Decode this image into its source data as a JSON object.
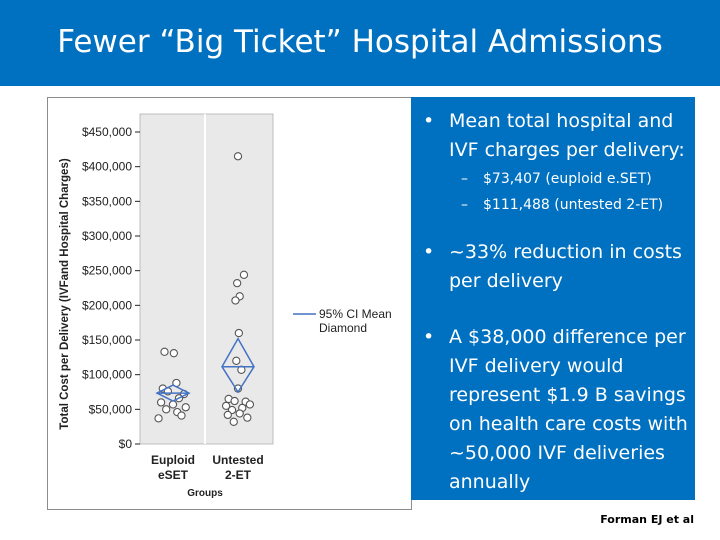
{
  "slide": {
    "title": "Fewer “Big Ticket” Hospital Admissions",
    "citation": "Forman EJ et al"
  },
  "bullets": [
    {
      "text": "Mean total hospital and IVF charges per delivery:"
    },
    {
      "text": "~33% reduction in costs per delivery"
    },
    {
      "text": "A $38,000 difference per IVF delivery would represent $1.9 B savings on health care costs with ~50,000 IVF deliveries annually"
    }
  ],
  "sub_bullets": [
    {
      "dash": "–",
      "text": "$73,407  (euploid e.SET)"
    },
    {
      "dash": "–",
      "text": "$111,488 (untested 2-ET)"
    }
  ],
  "colors": {
    "brand_blue": "#0070c0",
    "diamond": "#4472c4",
    "points": "#555555"
  },
  "chart_data": {
    "type": "scatter",
    "ylabel": "Total Cost per Delivery (IVFand Hospital Charges)",
    "xlabel": "Groups",
    "y_ticks": [
      {
        "value": 0,
        "label": "$0"
      },
      {
        "value": 50000,
        "label": "$50,000"
      },
      {
        "value": 100000,
        "label": "$100,000"
      },
      {
        "value": 150000,
        "label": "$150,000"
      },
      {
        "value": 200000,
        "label": "$200,000"
      },
      {
        "value": 250000,
        "label": "$250,000"
      },
      {
        "value": 300000,
        "label": "$300,000"
      },
      {
        "value": 350000,
        "label": "$350,000"
      },
      {
        "value": 400000,
        "label": "$400,000"
      },
      {
        "value": 450000,
        "label": "$450,000"
      }
    ],
    "ylim": [
      0,
      450000
    ],
    "categories": [
      {
        "line1": "Euploid",
        "line2": "eSET"
      },
      {
        "line1": "Untested",
        "line2": "2-ET"
      }
    ],
    "groups": [
      {
        "points": [
          {
            "jitter": -0.5,
            "y": 133000
          },
          {
            "jitter": 0.05,
            "y": 131000
          },
          {
            "jitter": 0.2,
            "y": 88000
          },
          {
            "jitter": -0.6,
            "y": 80000
          },
          {
            "jitter": -0.3,
            "y": 76000
          },
          {
            "jitter": 0.65,
            "y": 72000
          },
          {
            "jitter": 0.35,
            "y": 66000
          },
          {
            "jitter": -0.7,
            "y": 60000
          },
          {
            "jitter": 0.0,
            "y": 57000
          },
          {
            "jitter": 0.75,
            "y": 53000
          },
          {
            "jitter": -0.4,
            "y": 50000
          },
          {
            "jitter": 0.25,
            "y": 46000
          },
          {
            "jitter": -0.85,
            "y": 37000
          },
          {
            "jitter": 0.5,
            "y": 41000
          }
        ],
        "mean": 73407,
        "ci_low": 62000,
        "ci_high": 85000
      },
      {
        "points": [
          {
            "jitter": 0.0,
            "y": 415000
          },
          {
            "jitter": 0.35,
            "y": 244000
          },
          {
            "jitter": -0.05,
            "y": 232000
          },
          {
            "jitter": 0.1,
            "y": 213000
          },
          {
            "jitter": -0.15,
            "y": 207000
          },
          {
            "jitter": 0.05,
            "y": 160000
          },
          {
            "jitter": -0.1,
            "y": 120000
          },
          {
            "jitter": 0.2,
            "y": 107000
          },
          {
            "jitter": 0.0,
            "y": 80000
          },
          {
            "jitter": -0.55,
            "y": 65000
          },
          {
            "jitter": -0.2,
            "y": 62000
          },
          {
            "jitter": 0.45,
            "y": 61000
          },
          {
            "jitter": 0.7,
            "y": 57000
          },
          {
            "jitter": -0.7,
            "y": 55000
          },
          {
            "jitter": 0.25,
            "y": 52000
          },
          {
            "jitter": -0.35,
            "y": 49000
          },
          {
            "jitter": 0.1,
            "y": 44000
          },
          {
            "jitter": -0.6,
            "y": 42000
          },
          {
            "jitter": 0.55,
            "y": 38000
          },
          {
            "jitter": -0.25,
            "y": 32000
          }
        ],
        "mean": 111488,
        "ci_low": 75000,
        "ci_high": 152000
      }
    ],
    "legend": {
      "line1": "95% CI Mean",
      "line2": "Diamond",
      "placement": "right"
    },
    "grid": false
  }
}
